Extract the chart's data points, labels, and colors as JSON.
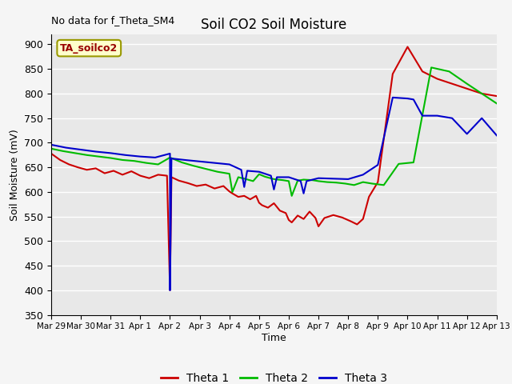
{
  "title": "Soil CO2 Soil Moisture",
  "xlabel": "Time",
  "ylabel": "Soil Moisture (mV)",
  "no_data_label": "No data for f_Theta_SM4",
  "box_label": "TA_soilco2",
  "ylim": [
    350,
    920
  ],
  "yticks": [
    350,
    400,
    450,
    500,
    550,
    600,
    650,
    700,
    750,
    800,
    850,
    900
  ],
  "x_labels": [
    "Mar 29",
    "Mar 30",
    "Mar 31",
    "Apr 1",
    "Apr 2",
    "Apr 3",
    "Apr 4",
    "Apr 5",
    "Apr 6",
    "Apr 7",
    "Apr 8",
    "Apr 9",
    "Apr 10",
    "Apr 11",
    "Apr 12",
    "Apr 13"
  ],
  "bg_color": "#e8e8e8",
  "grid_color": "#ffffff",
  "theta1_color": "#cc0000",
  "theta2_color": "#00bb00",
  "theta3_color": "#0000cc",
  "legend_entries": [
    "Theta 1",
    "Theta 2",
    "Theta 3"
  ],
  "total_days": 15,
  "theta1_x": [
    0.0,
    0.3,
    0.6,
    0.9,
    1.2,
    1.5,
    1.8,
    2.1,
    2.4,
    2.7,
    3.0,
    3.3,
    3.6,
    3.9,
    4.0,
    4.05,
    4.3,
    4.6,
    4.9,
    5.2,
    5.5,
    5.8,
    6.0,
    6.1,
    6.3,
    6.5,
    6.7,
    6.9,
    7.0,
    7.1,
    7.3,
    7.5,
    7.7,
    7.9,
    8.0,
    8.1,
    8.3,
    8.5,
    8.7,
    8.9,
    9.0,
    9.2,
    9.5,
    9.8,
    10.1,
    10.3,
    10.5,
    10.7,
    11.0,
    11.5,
    12.0,
    12.5,
    13.0,
    13.5,
    14.0,
    14.5,
    15.0
  ],
  "theta1_y": [
    678,
    665,
    656,
    650,
    645,
    648,
    638,
    643,
    635,
    642,
    633,
    628,
    635,
    633,
    400,
    630,
    623,
    618,
    612,
    615,
    607,
    612,
    601,
    597,
    590,
    592,
    585,
    592,
    578,
    573,
    568,
    577,
    562,
    557,
    543,
    538,
    552,
    545,
    560,
    547,
    530,
    547,
    553,
    548,
    540,
    534,
    545,
    590,
    620,
    840,
    895,
    845,
    830,
    820,
    810,
    800,
    795
  ],
  "theta2_x": [
    0.0,
    0.4,
    0.8,
    1.2,
    1.6,
    2.0,
    2.4,
    2.8,
    3.2,
    3.6,
    4.0,
    4.4,
    4.8,
    5.2,
    5.6,
    6.0,
    6.1,
    6.3,
    6.5,
    6.8,
    7.0,
    7.2,
    7.5,
    7.8,
    8.0,
    8.1,
    8.3,
    8.5,
    8.8,
    9.0,
    9.3,
    9.6,
    9.9,
    10.2,
    10.5,
    10.8,
    11.2,
    11.7,
    12.2,
    12.8,
    13.4,
    14.0,
    14.5,
    15.0
  ],
  "theta2_y": [
    688,
    683,
    679,
    675,
    672,
    669,
    665,
    663,
    659,
    656,
    670,
    660,
    653,
    647,
    641,
    637,
    600,
    630,
    627,
    622,
    636,
    631,
    626,
    624,
    622,
    592,
    623,
    625,
    624,
    622,
    620,
    619,
    617,
    614,
    620,
    617,
    614,
    657,
    660,
    853,
    845,
    820,
    800,
    780
  ],
  "theta3_x": [
    0.0,
    0.5,
    1.0,
    1.5,
    2.0,
    2.5,
    3.0,
    3.5,
    4.0,
    4.0,
    4.05,
    4.5,
    5.0,
    5.5,
    6.0,
    6.4,
    6.5,
    6.6,
    7.0,
    7.4,
    7.5,
    7.6,
    8.0,
    8.4,
    8.5,
    8.6,
    9.0,
    9.5,
    10.0,
    10.5,
    11.0,
    11.5,
    12.0,
    12.2,
    12.5,
    13.0,
    13.5,
    14.0,
    14.5,
    15.0
  ],
  "theta3_y": [
    696,
    690,
    686,
    682,
    679,
    675,
    672,
    670,
    678,
    400,
    668,
    665,
    662,
    659,
    656,
    645,
    610,
    643,
    641,
    633,
    605,
    630,
    630,
    622,
    597,
    622,
    628,
    627,
    626,
    635,
    655,
    792,
    790,
    788,
    755,
    755,
    750,
    718,
    750,
    715
  ]
}
